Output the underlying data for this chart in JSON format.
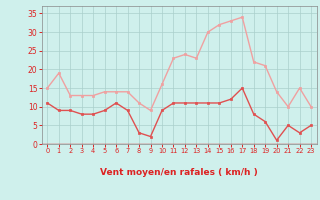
{
  "hours": [
    0,
    1,
    2,
    3,
    4,
    5,
    6,
    7,
    8,
    9,
    10,
    11,
    12,
    13,
    14,
    15,
    16,
    17,
    18,
    19,
    20,
    21,
    22,
    23
  ],
  "wind_avg": [
    11,
    9,
    9,
    8,
    8,
    9,
    11,
    9,
    3,
    2,
    9,
    11,
    11,
    11,
    11,
    11,
    12,
    15,
    8,
    6,
    1,
    5,
    3,
    5
  ],
  "wind_gust": [
    15,
    19,
    13,
    13,
    13,
    14,
    14,
    14,
    11,
    9,
    16,
    23,
    24,
    23,
    30,
    32,
    33,
    34,
    22,
    21,
    14,
    10,
    15,
    10
  ],
  "avg_color": "#e05050",
  "gust_color": "#f0a0a0",
  "background_color": "#cff0ec",
  "grid_color": "#aacfcc",
  "xlabel": "Vent moyen/en rafales ( km/h )",
  "xlabel_color": "#dd2222",
  "tick_color": "#dd2222",
  "ylim": [
    0,
    37
  ],
  "yticks": [
    0,
    5,
    10,
    15,
    20,
    25,
    30,
    35
  ],
  "spine_color": "#888888",
  "bottom_line_color": "#cc2222",
  "arrow_symbols": [
    "↑",
    "↖",
    "↑",
    "↖",
    "↑",
    "↖",
    "↖",
    "↑",
    "↑",
    "↙",
    "↙",
    "↙",
    "↙",
    "↙",
    "↙",
    "↙",
    "↙",
    "↙",
    "↙",
    "↙",
    "↑",
    "↑",
    "↑",
    "↖"
  ]
}
